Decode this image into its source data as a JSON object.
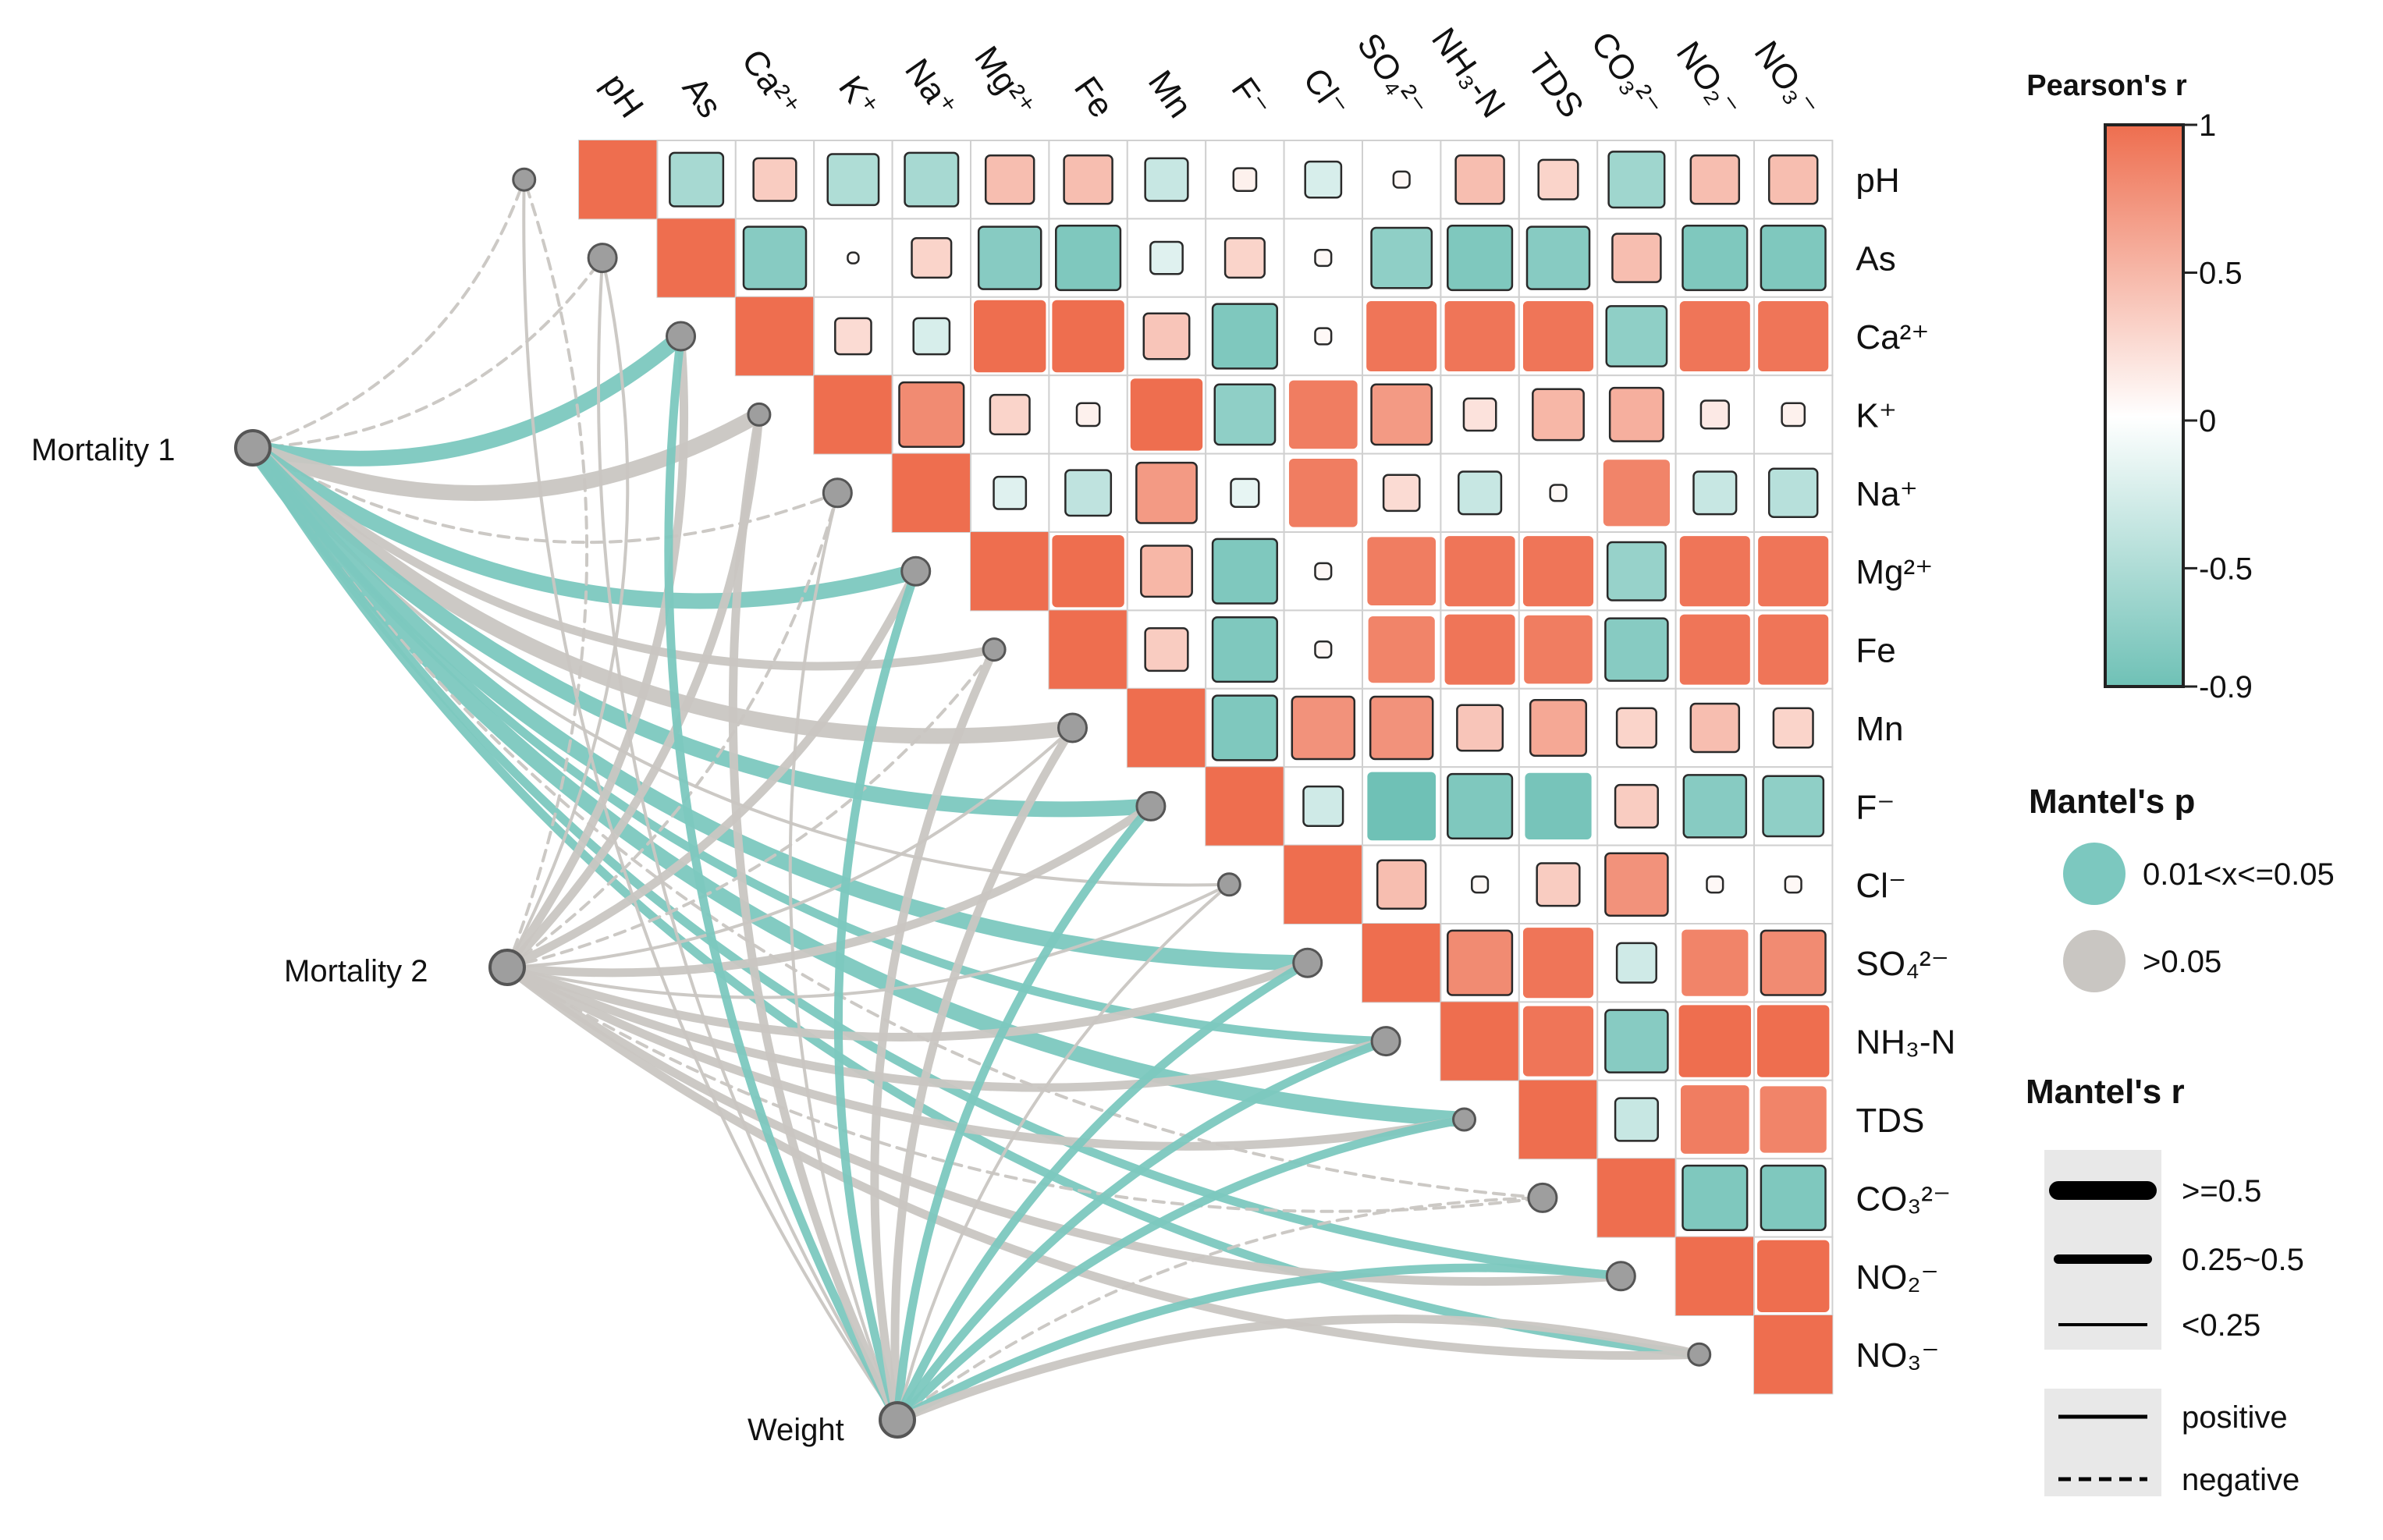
{
  "chart_data": {
    "type": "heatmap",
    "variables": [
      "pH",
      "As",
      "Ca²⁺",
      "K⁺",
      "Na⁺",
      "Mg²⁺",
      "Fe",
      "Mn",
      "F⁻",
      "Cl⁻",
      "SO₄²⁻",
      "NH₃-N",
      "TDS",
      "CO₃²⁻",
      "NO₂⁻",
      "NO₃⁻"
    ],
    "top_labels": [
      "pH",
      "As",
      "Ca²⁺",
      "K⁺",
      "Na⁺",
      "Mg²⁺",
      "Fe",
      "Mn",
      "F⁻",
      "Cl⁻",
      "SO₄²⁻",
      "NH₃-N",
      "TDS",
      "CO₃²⁻",
      "NO₂⁻",
      "NO₃⁻"
    ],
    "right_labels": [
      "pH",
      "As",
      "Ca²⁺",
      "K⁺",
      "Na⁺",
      "Mg²⁺",
      "Fe",
      "Mn",
      "F⁻",
      "Cl⁻",
      "SO₄²⁻",
      "NH₃-N",
      "TDS",
      "CO₃²⁻",
      "NO₂⁻",
      "NO₃⁻"
    ],
    "pearson_r": [
      [
        1.0,
        -0.55,
        0.35,
        -0.5,
        -0.55,
        0.45,
        0.45,
        -0.35,
        0.1,
        -0.25,
        0.05,
        0.45,
        0.3,
        -0.6,
        0.45,
        0.45
      ],
      [
        null,
        1.0,
        -0.75,
        0.02,
        0.3,
        -0.75,
        -0.8,
        -0.2,
        0.3,
        0.05,
        -0.7,
        -0.8,
        -0.75,
        0.45,
        -0.8,
        -0.8
      ],
      [
        null,
        null,
        1.0,
        0.25,
        -0.25,
        1.0,
        1.0,
        0.4,
        -0.8,
        0.05,
        0.95,
        0.95,
        0.95,
        -0.7,
        0.95,
        0.95
      ],
      [
        null,
        null,
        null,
        1.0,
        0.8,
        0.3,
        0.1,
        1.0,
        -0.7,
        0.9,
        0.7,
        0.2,
        0.5,
        0.55,
        0.15,
        0.1
      ],
      [
        null,
        null,
        null,
        null,
        1.0,
        -0.2,
        -0.4,
        0.7,
        -0.15,
        0.9,
        0.25,
        -0.35,
        0.05,
        0.85,
        -0.35,
        -0.45
      ],
      [
        null,
        null,
        null,
        null,
        null,
        1.0,
        1.0,
        0.5,
        -0.8,
        0.05,
        0.9,
        0.95,
        0.95,
        -0.65,
        0.95,
        0.95
      ],
      [
        null,
        null,
        null,
        null,
        null,
        null,
        1.0,
        0.35,
        -0.8,
        0.05,
        0.85,
        0.95,
        0.9,
        -0.75,
        0.95,
        0.95
      ],
      [
        null,
        null,
        null,
        null,
        null,
        null,
        null,
        1.0,
        -0.8,
        0.75,
        0.75,
        0.4,
        0.6,
        0.3,
        0.45,
        0.3
      ],
      [
        null,
        null,
        null,
        null,
        null,
        null,
        null,
        null,
        1.0,
        -0.3,
        -0.9,
        -0.8,
        -0.85,
        0.35,
        -0.75,
        -0.7
      ],
      [
        null,
        null,
        null,
        null,
        null,
        null,
        null,
        null,
        null,
        1.0,
        0.45,
        0.05,
        0.35,
        0.75,
        0.05,
        0.05
      ],
      [
        null,
        null,
        null,
        null,
        null,
        null,
        null,
        null,
        null,
        null,
        1.0,
        0.8,
        0.95,
        -0.3,
        0.85,
        0.8
      ],
      [
        null,
        null,
        null,
        null,
        null,
        null,
        null,
        null,
        null,
        null,
        null,
        1.0,
        0.95,
        -0.75,
        1.0,
        1.0
      ],
      [
        null,
        null,
        null,
        null,
        null,
        null,
        null,
        null,
        null,
        null,
        null,
        null,
        1.0,
        -0.35,
        0.9,
        0.85
      ],
      [
        null,
        null,
        null,
        null,
        null,
        null,
        null,
        null,
        null,
        null,
        null,
        null,
        null,
        1.0,
        -0.8,
        -0.8
      ],
      [
        null,
        null,
        null,
        null,
        null,
        null,
        null,
        null,
        null,
        null,
        null,
        null,
        null,
        null,
        1.0,
        1.0
      ],
      [
        null,
        null,
        null,
        null,
        null,
        null,
        null,
        null,
        null,
        null,
        null,
        null,
        null,
        null,
        null,
        1.0
      ]
    ],
    "mantel_nodes": [
      {
        "label": "Mortality 1"
      },
      {
        "label": "Mortality 2"
      },
      {
        "label": "Weight"
      }
    ],
    "mantel_links": [
      {
        "from": 0,
        "to": 0,
        "p": "gt0.05",
        "r": "lt0.25",
        "sign": "negative"
      },
      {
        "from": 0,
        "to": 1,
        "p": "gt0.05",
        "r": "lt0.25",
        "sign": "negative"
      },
      {
        "from": 0,
        "to": 2,
        "p": "0.01-0.05",
        "r": "ge0.5",
        "sign": "positive"
      },
      {
        "from": 0,
        "to": 3,
        "p": "gt0.05",
        "r": "ge0.5",
        "sign": "positive"
      },
      {
        "from": 0,
        "to": 4,
        "p": "gt0.05",
        "r": "lt0.25",
        "sign": "negative"
      },
      {
        "from": 0,
        "to": 5,
        "p": "0.01-0.05",
        "r": "ge0.5",
        "sign": "positive"
      },
      {
        "from": 0,
        "to": 6,
        "p": "gt0.05",
        "r": "0.25-0.5",
        "sign": "positive"
      },
      {
        "from": 0,
        "to": 7,
        "p": "gt0.05",
        "r": "ge0.5",
        "sign": "positive"
      },
      {
        "from": 0,
        "to": 8,
        "p": "0.01-0.05",
        "r": "ge0.5",
        "sign": "positive"
      },
      {
        "from": 0,
        "to": 9,
        "p": "gt0.05",
        "r": "lt0.25",
        "sign": "positive"
      },
      {
        "from": 0,
        "to": 10,
        "p": "0.01-0.05",
        "r": "ge0.5",
        "sign": "positive"
      },
      {
        "from": 0,
        "to": 11,
        "p": "0.01-0.05",
        "r": "0.25-0.5",
        "sign": "positive"
      },
      {
        "from": 0,
        "to": 12,
        "p": "0.01-0.05",
        "r": "ge0.5",
        "sign": "positive"
      },
      {
        "from": 0,
        "to": 13,
        "p": "gt0.05",
        "r": "lt0.25",
        "sign": "negative"
      },
      {
        "from": 0,
        "to": 14,
        "p": "0.01-0.05",
        "r": "0.25-0.5",
        "sign": "positive"
      },
      {
        "from": 0,
        "to": 15,
        "p": "0.01-0.05",
        "r": "0.25-0.5",
        "sign": "positive"
      },
      {
        "from": 1,
        "to": 0,
        "p": "gt0.05",
        "r": "lt0.25",
        "sign": "negative"
      },
      {
        "from": 1,
        "to": 1,
        "p": "gt0.05",
        "r": "lt0.25",
        "sign": "positive"
      },
      {
        "from": 1,
        "to": 2,
        "p": "gt0.05",
        "r": "0.25-0.5",
        "sign": "positive"
      },
      {
        "from": 1,
        "to": 3,
        "p": "gt0.05",
        "r": "0.25-0.5",
        "sign": "positive"
      },
      {
        "from": 1,
        "to": 4,
        "p": "gt0.05",
        "r": "lt0.25",
        "sign": "negative"
      },
      {
        "from": 1,
        "to": 5,
        "p": "gt0.05",
        "r": "0.25-0.5",
        "sign": "positive"
      },
      {
        "from": 1,
        "to": 6,
        "p": "gt0.05",
        "r": "lt0.25",
        "sign": "negative"
      },
      {
        "from": 1,
        "to": 7,
        "p": "gt0.05",
        "r": "lt0.25",
        "sign": "positive"
      },
      {
        "from": 1,
        "to": 8,
        "p": "gt0.05",
        "r": "0.25-0.5",
        "sign": "positive"
      },
      {
        "from": 1,
        "to": 9,
        "p": "gt0.05",
        "r": "lt0.25",
        "sign": "positive"
      },
      {
        "from": 1,
        "to": 10,
        "p": "gt0.05",
        "r": "0.25-0.5",
        "sign": "positive"
      },
      {
        "from": 1,
        "to": 11,
        "p": "gt0.05",
        "r": "0.25-0.5",
        "sign": "positive"
      },
      {
        "from": 1,
        "to": 12,
        "p": "gt0.05",
        "r": "0.25-0.5",
        "sign": "positive"
      },
      {
        "from": 1,
        "to": 13,
        "p": "gt0.05",
        "r": "lt0.25",
        "sign": "negative"
      },
      {
        "from": 1,
        "to": 14,
        "p": "gt0.05",
        "r": "0.25-0.5",
        "sign": "positive"
      },
      {
        "from": 1,
        "to": 15,
        "p": "gt0.05",
        "r": "0.25-0.5",
        "sign": "positive"
      },
      {
        "from": 2,
        "to": 0,
        "p": "gt0.05",
        "r": "lt0.25",
        "sign": "positive"
      },
      {
        "from": 2,
        "to": 1,
        "p": "gt0.05",
        "r": "lt0.25",
        "sign": "positive"
      },
      {
        "from": 2,
        "to": 2,
        "p": "0.01-0.05",
        "r": "0.25-0.5",
        "sign": "positive"
      },
      {
        "from": 2,
        "to": 3,
        "p": "gt0.05",
        "r": "0.25-0.5",
        "sign": "positive"
      },
      {
        "from": 2,
        "to": 4,
        "p": "gt0.05",
        "r": "lt0.25",
        "sign": "positive"
      },
      {
        "from": 2,
        "to": 5,
        "p": "0.01-0.05",
        "r": "0.25-0.5",
        "sign": "positive"
      },
      {
        "from": 2,
        "to": 6,
        "p": "gt0.05",
        "r": "0.25-0.5",
        "sign": "positive"
      },
      {
        "from": 2,
        "to": 7,
        "p": "gt0.05",
        "r": "0.25-0.5",
        "sign": "positive"
      },
      {
        "from": 2,
        "to": 8,
        "p": "0.01-0.05",
        "r": "0.25-0.5",
        "sign": "positive"
      },
      {
        "from": 2,
        "to": 9,
        "p": "gt0.05",
        "r": "lt0.25",
        "sign": "positive"
      },
      {
        "from": 2,
        "to": 10,
        "p": "0.01-0.05",
        "r": "0.25-0.5",
        "sign": "positive"
      },
      {
        "from": 2,
        "to": 11,
        "p": "0.01-0.05",
        "r": "0.25-0.5",
        "sign": "positive"
      },
      {
        "from": 2,
        "to": 12,
        "p": "0.01-0.05",
        "r": "0.25-0.5",
        "sign": "positive"
      },
      {
        "from": 2,
        "to": 13,
        "p": "gt0.05",
        "r": "lt0.25",
        "sign": "negative"
      },
      {
        "from": 2,
        "to": 14,
        "p": "0.01-0.05",
        "r": "0.25-0.5",
        "sign": "positive"
      },
      {
        "from": 2,
        "to": 15,
        "p": "gt0.05",
        "r": "0.25-0.5",
        "sign": "positive"
      }
    ]
  },
  "legend": {
    "pearson_title": "Pearson's r",
    "pearson_ticks": [
      "1",
      "0.5",
      "0",
      "-0.5",
      "-0.9"
    ],
    "pearson_tick_values": [
      1,
      0.5,
      0,
      -0.5,
      -0.9
    ],
    "mantel_p_title": "Mantel's p",
    "mantel_p_items": [
      "0.01<x<=0.05",
      ">0.05"
    ],
    "mantel_r_title": "Mantel's r",
    "mantel_r_items": [
      ">=0.5",
      "0.25~0.5",
      "<0.25"
    ],
    "sign_items": [
      "positive",
      "negative"
    ]
  },
  "colors": {
    "positive": "#ee6e4f",
    "negative": "#6fc1b6",
    "neutral": "#ffffff",
    "sig": "#7cc8bf",
    "nonsig": "#c9c6c2",
    "node": "#9e9e9e"
  }
}
